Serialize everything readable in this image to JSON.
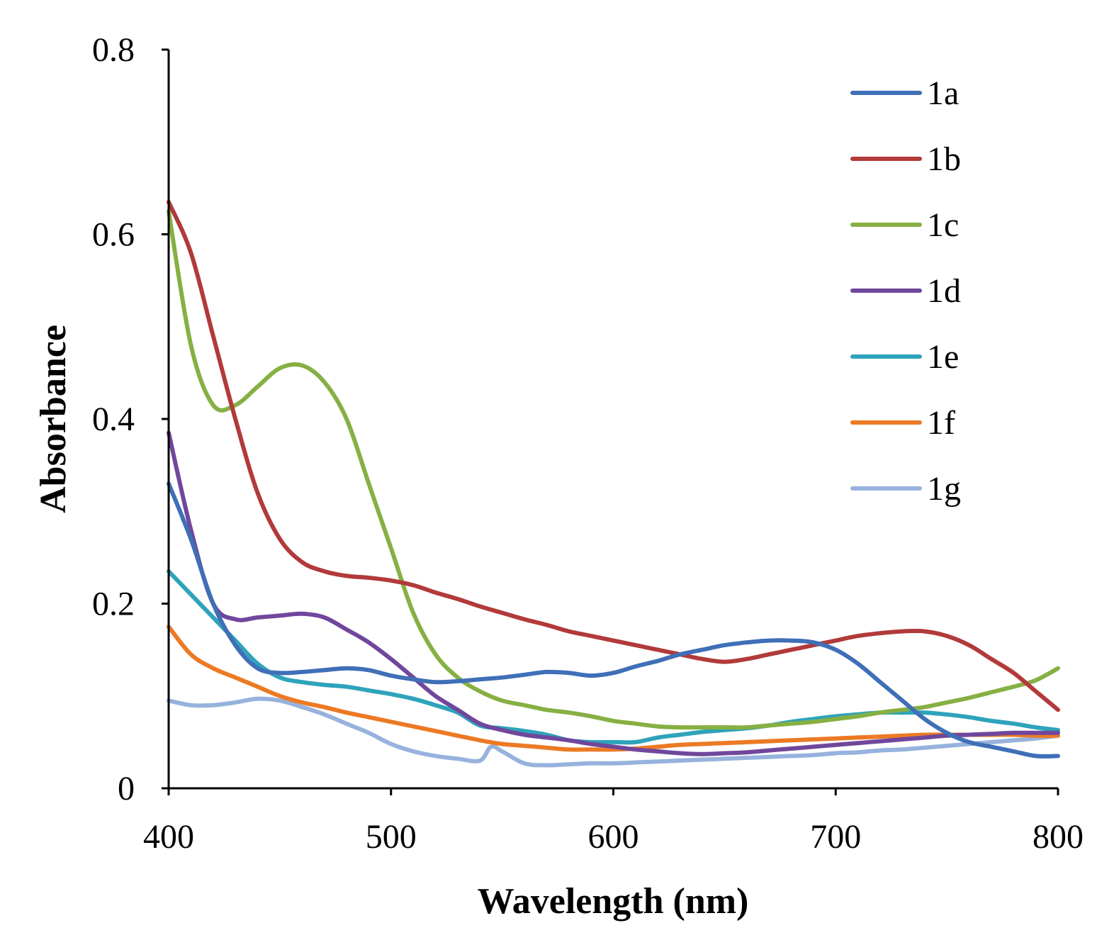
{
  "chart_data": {
    "type": "line",
    "title": "",
    "xlabel": "Wavelength (nm)",
    "ylabel": "Absorbance",
    "xlim": [
      400,
      800
    ],
    "ylim": [
      0,
      0.8
    ],
    "xticks": [
      400,
      500,
      600,
      700,
      800
    ],
    "xtick_labels": [
      "400",
      "500",
      "600",
      "700",
      "800"
    ],
    "yticks": [
      0,
      0.2,
      0.4,
      0.6,
      0.8
    ],
    "ytick_labels": [
      "0",
      "0.2",
      "0.4",
      "0.6",
      "0.8"
    ],
    "grid": false,
    "legend_position": "top-right",
    "series": [
      {
        "name": "1a",
        "color": "#3f6fb7",
        "x": [
          400,
          410,
          420,
          430,
          440,
          450,
          460,
          470,
          480,
          490,
          500,
          510,
          520,
          530,
          540,
          550,
          560,
          570,
          580,
          590,
          600,
          610,
          620,
          630,
          640,
          650,
          660,
          670,
          680,
          690,
          700,
          710,
          720,
          730,
          740,
          750,
          760,
          770,
          780,
          790,
          800
        ],
        "y": [
          0.33,
          0.27,
          0.2,
          0.155,
          0.13,
          0.125,
          0.126,
          0.128,
          0.13,
          0.128,
          0.122,
          0.118,
          0.115,
          0.116,
          0.118,
          0.12,
          0.123,
          0.126,
          0.125,
          0.122,
          0.125,
          0.132,
          0.138,
          0.145,
          0.15,
          0.155,
          0.158,
          0.16,
          0.16,
          0.158,
          0.15,
          0.135,
          0.115,
          0.095,
          0.075,
          0.06,
          0.05,
          0.045,
          0.04,
          0.035,
          0.035
        ]
      },
      {
        "name": "1b",
        "color": "#b23a3a",
        "x": [
          400,
          410,
          420,
          430,
          440,
          450,
          460,
          470,
          480,
          490,
          500,
          510,
          520,
          530,
          540,
          550,
          560,
          570,
          580,
          590,
          600,
          610,
          620,
          630,
          640,
          650,
          660,
          670,
          680,
          690,
          700,
          710,
          720,
          730,
          740,
          750,
          760,
          770,
          780,
          790,
          800
        ],
        "y": [
          0.635,
          0.58,
          0.49,
          0.4,
          0.32,
          0.27,
          0.245,
          0.235,
          0.23,
          0.228,
          0.225,
          0.22,
          0.212,
          0.205,
          0.197,
          0.19,
          0.183,
          0.177,
          0.17,
          0.165,
          0.16,
          0.155,
          0.15,
          0.145,
          0.14,
          0.137,
          0.14,
          0.145,
          0.15,
          0.155,
          0.16,
          0.165,
          0.168,
          0.17,
          0.17,
          0.165,
          0.155,
          0.14,
          0.125,
          0.105,
          0.085
        ]
      },
      {
        "name": "1c",
        "color": "#86b043",
        "x": [
          400,
          410,
          420,
          430,
          440,
          450,
          460,
          470,
          480,
          490,
          500,
          510,
          520,
          530,
          540,
          550,
          560,
          570,
          580,
          590,
          600,
          610,
          620,
          630,
          640,
          650,
          660,
          670,
          680,
          690,
          700,
          710,
          720,
          730,
          740,
          750,
          760,
          770,
          780,
          790,
          800
        ],
        "y": [
          0.625,
          0.48,
          0.415,
          0.415,
          0.435,
          0.455,
          0.458,
          0.44,
          0.4,
          0.33,
          0.26,
          0.19,
          0.145,
          0.12,
          0.105,
          0.095,
          0.09,
          0.085,
          0.082,
          0.078,
          0.073,
          0.07,
          0.067,
          0.066,
          0.066,
          0.066,
          0.066,
          0.068,
          0.07,
          0.072,
          0.075,
          0.078,
          0.082,
          0.085,
          0.088,
          0.093,
          0.098,
          0.104,
          0.11,
          0.117,
          0.13
        ]
      },
      {
        "name": "1d",
        "color": "#70479c",
        "x": [
          400,
          410,
          420,
          430,
          440,
          450,
          460,
          470,
          480,
          490,
          500,
          510,
          520,
          530,
          540,
          550,
          560,
          570,
          580,
          590,
          600,
          610,
          620,
          630,
          640,
          650,
          660,
          670,
          680,
          690,
          700,
          710,
          720,
          730,
          740,
          750,
          760,
          770,
          780,
          790,
          800
        ],
        "y": [
          0.385,
          0.28,
          0.2,
          0.183,
          0.185,
          0.187,
          0.189,
          0.185,
          0.172,
          0.158,
          0.14,
          0.12,
          0.1,
          0.085,
          0.07,
          0.063,
          0.058,
          0.055,
          0.052,
          0.048,
          0.045,
          0.042,
          0.04,
          0.038,
          0.037,
          0.038,
          0.039,
          0.041,
          0.043,
          0.045,
          0.047,
          0.049,
          0.051,
          0.053,
          0.055,
          0.057,
          0.058,
          0.059,
          0.06,
          0.06,
          0.06
        ]
      },
      {
        "name": "1e",
        "color": "#2ea3bb",
        "x": [
          400,
          410,
          420,
          430,
          440,
          450,
          460,
          470,
          480,
          490,
          500,
          510,
          520,
          530,
          540,
          550,
          560,
          570,
          580,
          590,
          600,
          610,
          620,
          630,
          640,
          650,
          660,
          670,
          680,
          690,
          700,
          710,
          720,
          730,
          740,
          750,
          760,
          770,
          780,
          790,
          800
        ],
        "y": [
          0.235,
          0.21,
          0.185,
          0.16,
          0.135,
          0.12,
          0.115,
          0.112,
          0.11,
          0.106,
          0.102,
          0.097,
          0.09,
          0.082,
          0.068,
          0.065,
          0.062,
          0.058,
          0.052,
          0.05,
          0.05,
          0.05,
          0.055,
          0.058,
          0.061,
          0.063,
          0.065,
          0.068,
          0.072,
          0.075,
          0.078,
          0.08,
          0.082,
          0.082,
          0.082,
          0.08,
          0.077,
          0.073,
          0.07,
          0.066,
          0.063
        ]
      },
      {
        "name": "1f",
        "color": "#ec7a24",
        "x": [
          400,
          410,
          420,
          430,
          440,
          450,
          460,
          470,
          480,
          490,
          500,
          510,
          520,
          530,
          540,
          550,
          560,
          570,
          580,
          590,
          600,
          610,
          620,
          630,
          640,
          650,
          660,
          670,
          680,
          690,
          700,
          710,
          720,
          730,
          740,
          750,
          760,
          770,
          780,
          790,
          800
        ],
        "y": [
          0.175,
          0.145,
          0.13,
          0.12,
          0.11,
          0.1,
          0.093,
          0.088,
          0.082,
          0.077,
          0.072,
          0.067,
          0.062,
          0.057,
          0.052,
          0.048,
          0.046,
          0.044,
          0.042,
          0.042,
          0.042,
          0.043,
          0.045,
          0.047,
          0.048,
          0.049,
          0.05,
          0.051,
          0.052,
          0.053,
          0.054,
          0.055,
          0.056,
          0.057,
          0.058,
          0.058,
          0.058,
          0.058,
          0.058,
          0.057,
          0.057
        ]
      },
      {
        "name": "1g",
        "color": "#97b2dd",
        "x": [
          400,
          410,
          420,
          430,
          440,
          450,
          460,
          470,
          480,
          490,
          500,
          510,
          520,
          530,
          540,
          545,
          550,
          560,
          570,
          580,
          590,
          600,
          610,
          620,
          630,
          640,
          650,
          660,
          670,
          680,
          690,
          700,
          710,
          720,
          730,
          740,
          750,
          760,
          770,
          780,
          790,
          800
        ],
        "y": [
          0.095,
          0.09,
          0.09,
          0.093,
          0.097,
          0.095,
          0.088,
          0.08,
          0.07,
          0.06,
          0.048,
          0.04,
          0.035,
          0.032,
          0.03,
          0.045,
          0.04,
          0.027,
          0.025,
          0.026,
          0.027,
          0.027,
          0.028,
          0.029,
          0.03,
          0.031,
          0.032,
          0.033,
          0.034,
          0.035,
          0.036,
          0.038,
          0.039,
          0.041,
          0.042,
          0.044,
          0.046,
          0.048,
          0.05,
          0.052,
          0.054,
          0.057
        ]
      }
    ]
  }
}
